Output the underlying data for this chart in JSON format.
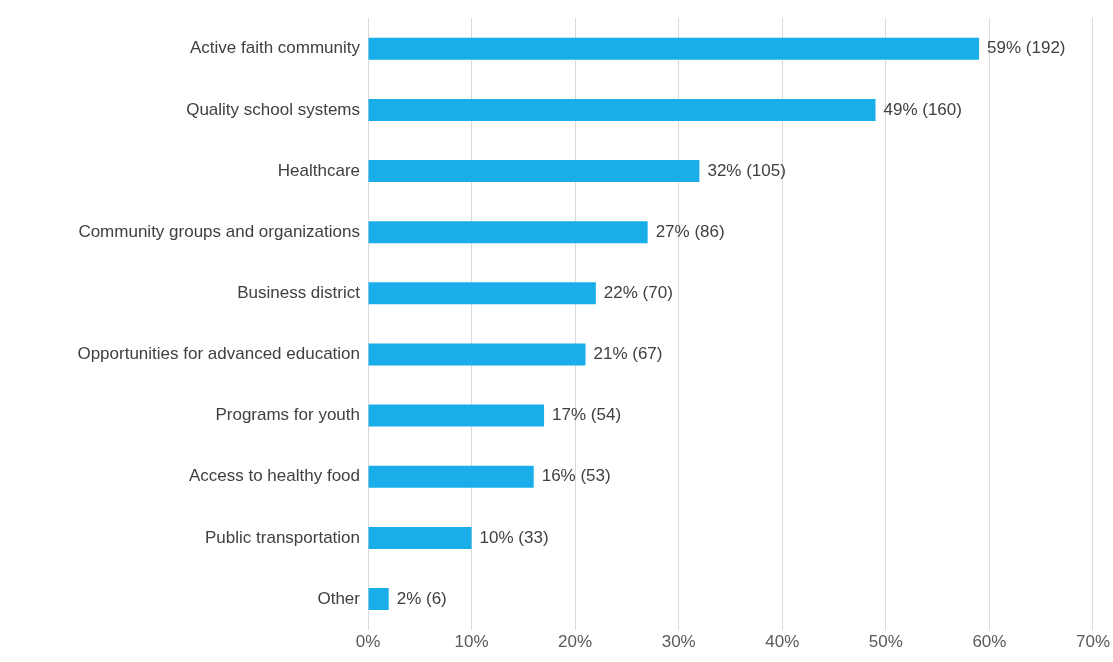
{
  "chart_data": {
    "type": "bar",
    "orientation": "horizontal",
    "categories": [
      "Active faith community",
      "Quality school systems",
      "Healthcare",
      "Community groups and organizations",
      "Business district",
      "Opportunities for advanced education",
      "Programs for youth",
      "Access to healthy food",
      "Public transportation",
      "Other"
    ],
    "values": [
      59,
      49,
      32,
      27,
      22,
      21,
      17,
      16,
      10,
      2
    ],
    "value_labels": [
      "59% (192)",
      "49% (160)",
      "32% (105)",
      "27% (86)",
      "22% (70)",
      "21% (67)",
      "17% (54)",
      "16% (53)",
      "10% (33)",
      "2% (6)"
    ],
    "color": "#19aeea",
    "xlim": [
      0,
      70
    ],
    "xticks": [
      {
        "value": 0,
        "label": "0%"
      },
      {
        "value": 10,
        "label": "10%"
      },
      {
        "value": 20,
        "label": "20%"
      },
      {
        "value": 30,
        "label": "30%"
      },
      {
        "value": 40,
        "label": "40%"
      },
      {
        "value": 50,
        "label": "50%"
      },
      {
        "value": 60,
        "label": "60%"
      },
      {
        "value": 70,
        "label": "70%"
      }
    ],
    "grid": "x",
    "legend": false
  }
}
